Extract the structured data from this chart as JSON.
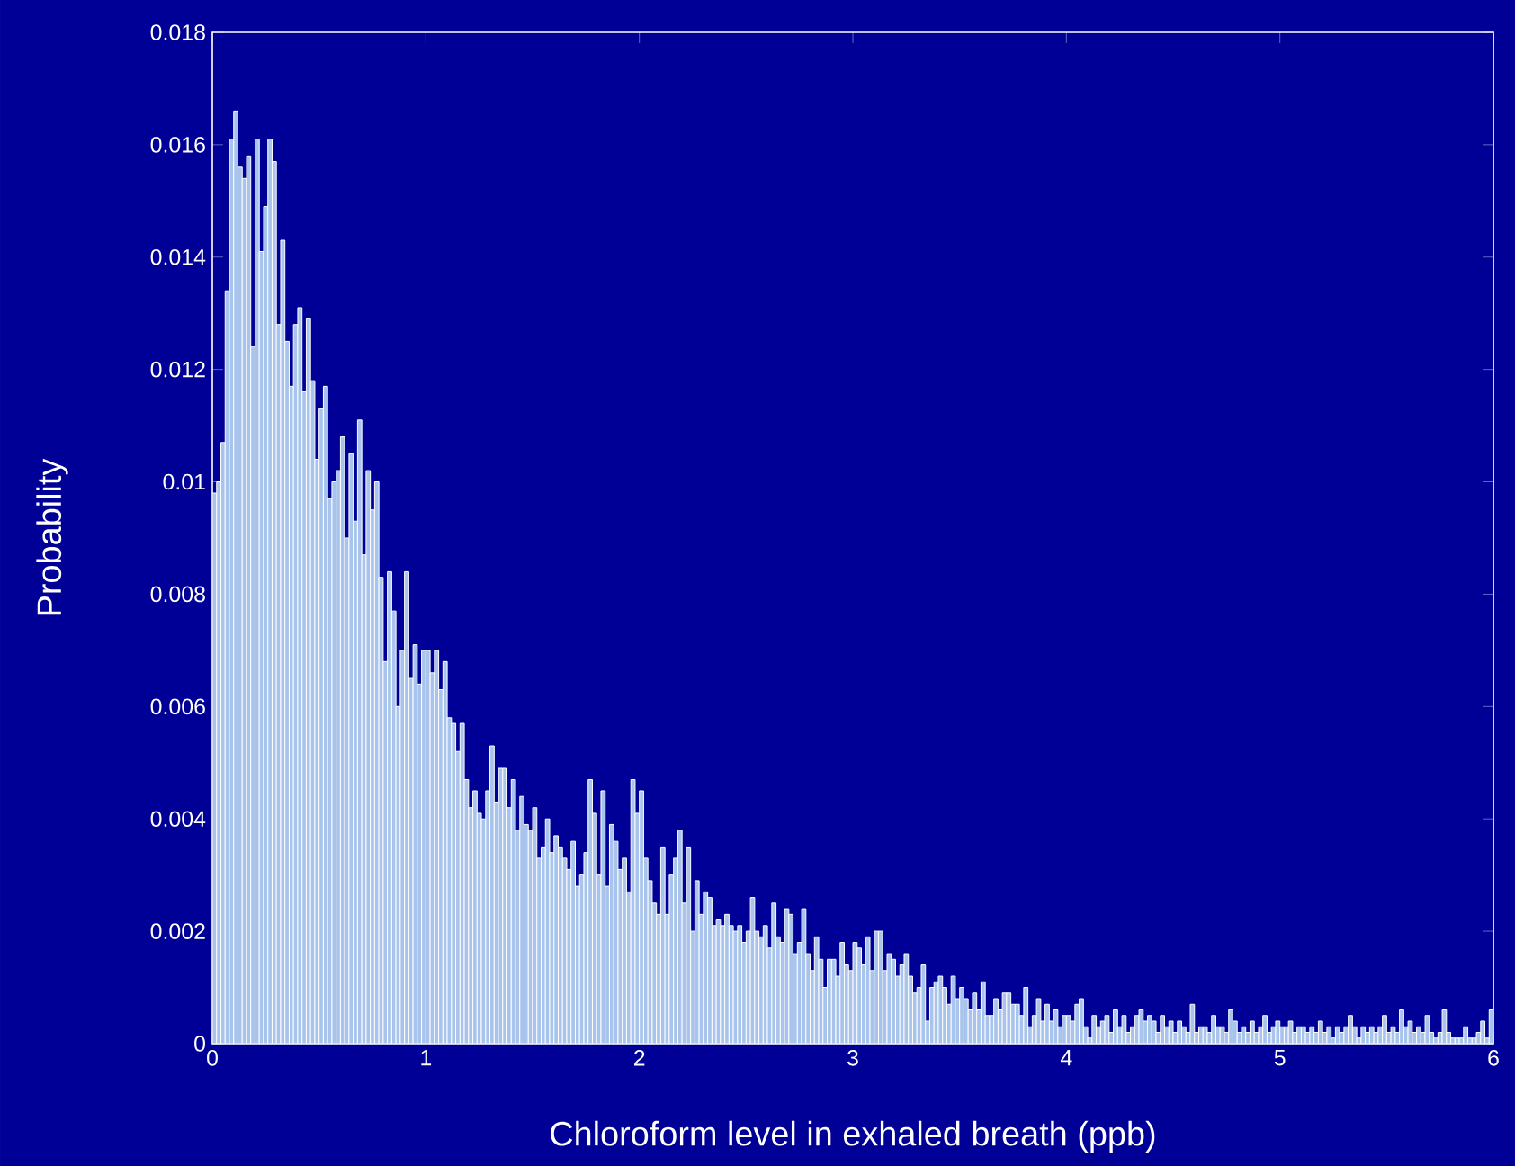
{
  "chart_data": {
    "type": "histogram",
    "xlabel": "Chloroform level in exhaled breath (ppb)",
    "ylabel": "Probability",
    "color": "#a8c4ec",
    "xlim": [
      0,
      6
    ],
    "ylim": [
      0,
      0.018
    ],
    "xticks": [
      0,
      1,
      2,
      3,
      4,
      5,
      6
    ],
    "yticks": [
      0,
      0.002,
      0.004,
      0.006,
      0.008,
      0.01,
      0.012,
      0.014,
      0.016,
      0.018
    ],
    "grid": false,
    "bins": [
      0,
      0.02,
      0.04,
      0.06,
      0.08,
      0.1,
      0.12,
      0.14,
      0.16,
      0.18,
      0.2,
      0.22,
      0.24,
      0.26,
      0.28,
      0.3,
      0.32,
      0.34,
      0.36,
      0.38,
      0.4,
      0.42,
      0.44,
      0.46,
      0.48,
      0.5,
      0.52,
      0.54,
      0.56,
      0.58,
      0.6,
      0.62,
      0.64,
      0.66,
      0.68,
      0.7,
      0.72,
      0.74,
      0.76,
      0.78,
      0.8,
      0.82,
      0.84,
      0.86,
      0.88,
      0.9,
      0.92,
      0.94,
      0.96,
      0.98,
      1,
      1.02,
      1.04,
      1.06,
      1.08,
      1.1,
      1.12,
      1.14,
      1.16,
      1.18,
      1.2,
      1.22,
      1.24,
      1.26,
      1.28,
      1.3,
      1.32,
      1.34,
      1.36,
      1.38,
      1.4,
      1.42,
      1.44,
      1.46,
      1.48,
      1.5,
      1.52,
      1.54,
      1.56,
      1.58,
      1.6,
      1.62,
      1.64,
      1.66,
      1.68,
      1.7,
      1.72,
      1.74,
      1.76,
      1.78,
      1.8,
      1.82,
      1.84,
      1.86,
      1.88,
      1.9,
      1.92,
      1.94,
      1.96,
      1.98,
      2,
      2.02,
      2.04,
      2.06,
      2.08,
      2.1,
      2.12,
      2.14,
      2.16,
      2.18,
      2.2,
      2.22,
      2.24,
      2.26,
      2.28,
      2.3,
      2.32,
      2.34,
      2.36,
      2.38,
      2.4,
      2.42,
      2.44,
      2.46,
      2.48,
      2.5,
      2.52,
      2.54,
      2.56,
      2.58,
      2.6,
      2.62,
      2.64,
      2.66,
      2.68,
      2.7,
      2.72,
      2.74,
      2.76,
      2.78,
      2.8,
      2.82,
      2.84,
      2.86,
      2.88,
      2.9,
      2.92,
      2.94,
      2.96,
      2.98,
      3,
      3.02,
      3.04,
      3.06,
      3.08,
      3.1,
      3.12,
      3.14,
      3.16,
      3.18,
      3.2,
      3.22,
      3.24,
      3.26,
      3.28,
      3.3,
      3.32,
      3.34,
      3.36,
      3.38,
      3.4,
      3.42,
      3.44,
      3.46,
      3.48,
      3.5,
      3.52,
      3.54,
      3.56,
      3.58,
      3.6,
      3.62,
      3.64,
      3.66,
      3.68,
      3.7,
      3.72,
      3.74,
      3.76,
      3.78,
      3.8,
      3.82,
      3.84,
      3.86,
      3.88,
      3.9,
      3.92,
      3.94,
      3.96,
      3.98,
      4,
      4.02,
      4.04,
      4.06,
      4.08,
      4.1,
      4.12,
      4.14,
      4.16,
      4.18,
      4.2,
      4.22,
      4.24,
      4.26,
      4.28,
      4.3,
      4.32,
      4.34,
      4.36,
      4.38,
      4.4,
      4.42,
      4.44,
      4.46,
      4.48,
      4.5,
      4.52,
      4.54,
      4.56,
      4.58,
      4.6,
      4.62,
      4.64,
      4.66,
      4.68,
      4.7,
      4.72,
      4.74,
      4.76,
      4.78,
      4.8,
      4.82,
      4.84,
      4.86,
      4.88,
      4.9,
      4.92,
      4.94,
      4.96,
      4.98,
      5,
      5.02,
      5.04,
      5.06,
      5.08,
      5.1,
      5.12,
      5.14,
      5.16,
      5.18,
      5.2,
      5.22,
      5.24,
      5.26,
      5.28,
      5.3,
      5.32,
      5.34,
      5.36,
      5.38,
      5.4,
      5.42,
      5.44,
      5.46,
      5.48,
      5.5,
      5.52,
      5.54,
      5.56,
      5.58,
      5.6,
      5.62,
      5.64,
      5.66,
      5.68,
      5.7,
      5.72,
      5.74,
      5.76,
      5.78,
      5.8,
      5.82,
      5.84,
      5.86,
      5.88,
      5.9,
      5.92,
      5.94,
      5.96,
      5.98,
      6
    ],
    "values": [
      0.0098,
      0.01,
      0.0107,
      0.0134,
      0.0161,
      0.0166,
      0.0156,
      0.0154,
      0.0158,
      0.0124,
      0.0161,
      0.0141,
      0.0149,
      0.0161,
      0.0157,
      0.0128,
      0.0143,
      0.0125,
      0.0117,
      0.0128,
      0.0131,
      0.0116,
      0.0129,
      0.0118,
      0.0104,
      0.0113,
      0.0117,
      0.0097,
      0.01,
      0.0102,
      0.0108,
      0.009,
      0.0105,
      0.0093,
      0.0111,
      0.0087,
      0.0102,
      0.0095,
      0.01,
      0.0083,
      0.0068,
      0.0084,
      0.0077,
      0.006,
      0.007,
      0.0084,
      0.0065,
      0.0071,
      0.0064,
      0.007,
      0.007,
      0.0066,
      0.007,
      0.0063,
      0.0068,
      0.0058,
      0.0057,
      0.0052,
      0.0057,
      0.0047,
      0.0042,
      0.0045,
      0.0041,
      0.004,
      0.0045,
      0.0053,
      0.0043,
      0.0049,
      0.0049,
      0.0042,
      0.0047,
      0.0038,
      0.0044,
      0.0039,
      0.0038,
      0.0042,
      0.0033,
      0.0035,
      0.004,
      0.0034,
      0.0037,
      0.0035,
      0.0033,
      0.0031,
      0.0036,
      0.0028,
      0.003,
      0.0034,
      0.0047,
      0.0041,
      0.003,
      0.0045,
      0.0028,
      0.0039,
      0.0036,
      0.0031,
      0.0033,
      0.0027,
      0.0047,
      0.0041,
      0.0045,
      0.0033,
      0.0029,
      0.0025,
      0.0023,
      0.0035,
      0.0023,
      0.003,
      0.0033,
      0.0038,
      0.0025,
      0.0035,
      0.002,
      0.0029,
      0.0023,
      0.0027,
      0.0026,
      0.0021,
      0.0022,
      0.0021,
      0.0023,
      0.0021,
      0.002,
      0.0021,
      0.0018,
      0.002,
      0.0026,
      0.002,
      0.0019,
      0.0021,
      0.0017,
      0.0025,
      0.0019,
      0.0018,
      0.0024,
      0.0023,
      0.0016,
      0.0018,
      0.0024,
      0.0016,
      0.0013,
      0.0019,
      0.0015,
      0.001,
      0.0015,
      0.0015,
      0.0012,
      0.0018,
      0.0014,
      0.0013,
      0.0018,
      0.0017,
      0.0014,
      0.0019,
      0.0013,
      0.002,
      0.002,
      0.0013,
      0.0016,
      0.0015,
      0.0012,
      0.0014,
      0.0016,
      0.0012,
      0.0009,
      0.001,
      0.0014,
      0.0004,
      0.001,
      0.0011,
      0.0012,
      0.001,
      0.0007,
      0.0012,
      0.0008,
      0.001,
      0.0008,
      0.0006,
      0.0009,
      0.0006,
      0.0011,
      0.0005,
      0.0005,
      0.0008,
      0.0006,
      0.0009,
      0.0009,
      0.0007,
      0.0007,
      0.0005,
      0.001,
      0.0003,
      0.0005,
      0.0008,
      0.0004,
      0.0007,
      0.0004,
      0.0006,
      0.0003,
      0.0005,
      0.0005,
      0.0004,
      0.0007,
      0.0008,
      0.0003,
      0.0001,
      0.0005,
      0.0003,
      0.0004,
      0.0005,
      0.0002,
      0.0006,
      0.0003,
      0.0005,
      0.0002,
      0.0003,
      0.0005,
      0.0006,
      0.0004,
      0.0005,
      0.0004,
      0.0002,
      0.0005,
      0.0003,
      0.0004,
      0.0002,
      0.0004,
      0.0003,
      0.0002,
      0.0007,
      0.0002,
      0.0003,
      0.0003,
      0.0002,
      0.0005,
      0.0003,
      0.0003,
      0.0002,
      0.0006,
      0.0004,
      0.0002,
      0.0003,
      0.0002,
      0.0004,
      0.0002,
      0.0003,
      0.0005,
      0.0002,
      0.0003,
      0.0004,
      0.0003,
      0.0003,
      0.0004,
      0.0002,
      0.0003,
      0.0003,
      0.0002,
      0.0003,
      0.0002,
      0.0004,
      0.0002,
      0.0003,
      0.0001,
      0.0003,
      0.0002,
      0.0003,
      0.0005,
      0.0003,
      0.0001,
      0.0003,
      0.0002,
      0.0003,
      0.0002,
      0.0003,
      0.0005,
      0.0002,
      0.0003,
      0.0002,
      0.0006,
      0.0003,
      0.0004,
      0.0002,
      0.0003,
      0.0002,
      0.0005,
      0.0002,
      0.0001,
      0.0002,
      0.0006,
      0.0002,
      0.0001,
      0.0001,
      0.0001,
      0.0003,
      0.0001,
      0.0001,
      0.0002,
      0.0004,
      0.0001,
      0.0006
    ]
  }
}
